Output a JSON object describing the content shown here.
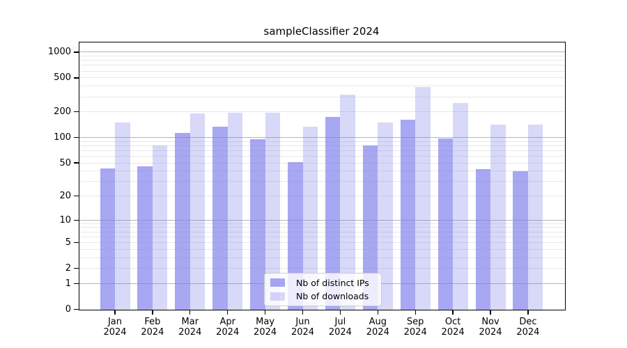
{
  "title": "sampleClassifier 2024",
  "colors": {
    "ips_bar": "rgba(120,120,235,0.65)",
    "downloads_bar": "rgba(120,120,235,0.29)",
    "major_gridline": "#b4b4b4",
    "minor_gridline": "#e8e8e8",
    "axis": "#000000",
    "legend_border": "#cccccc",
    "legend_background": "rgba(255,255,255,0.8)"
  },
  "chart_data": {
    "type": "bar",
    "title": "sampleClassifier 2024",
    "categories": [
      "Jan",
      "Feb",
      "Mar",
      "Apr",
      "May",
      "Jun",
      "Jul",
      "Aug",
      "Sep",
      "Oct",
      "Nov",
      "Dec"
    ],
    "category_year": "2024",
    "series": [
      {
        "name": "Nb of distinct IPs",
        "values": [
          43,
          46,
          113,
          135,
          95,
          51,
          175,
          81,
          162,
          98,
          42,
          40
        ]
      },
      {
        "name": "Nb of downloads",
        "values": [
          151,
          80,
          190,
          195,
          196,
          133,
          318,
          150,
          388,
          252,
          141,
          143
        ]
      }
    ],
    "yscale": "log10(value+1)",
    "ylim": [
      0,
      1320
    ],
    "y_ticks": [
      0,
      1,
      2,
      5,
      10,
      20,
      50,
      100,
      200,
      500,
      1000
    ],
    "major_gridlines": [
      1,
      10,
      100,
      1000
    ],
    "minor_gridlines": [
      2,
      3,
      4,
      5,
      6,
      7,
      8,
      9,
      20,
      30,
      40,
      50,
      60,
      70,
      80,
      90,
      200,
      300,
      400,
      500,
      600,
      700,
      800,
      900
    ],
    "xlabel": "",
    "ylabel": "",
    "grid": "on",
    "legend_position": "lower-center"
  },
  "legend": {
    "items": [
      {
        "label": "Nb of distinct IPs"
      },
      {
        "label": "Nb of downloads"
      }
    ]
  }
}
